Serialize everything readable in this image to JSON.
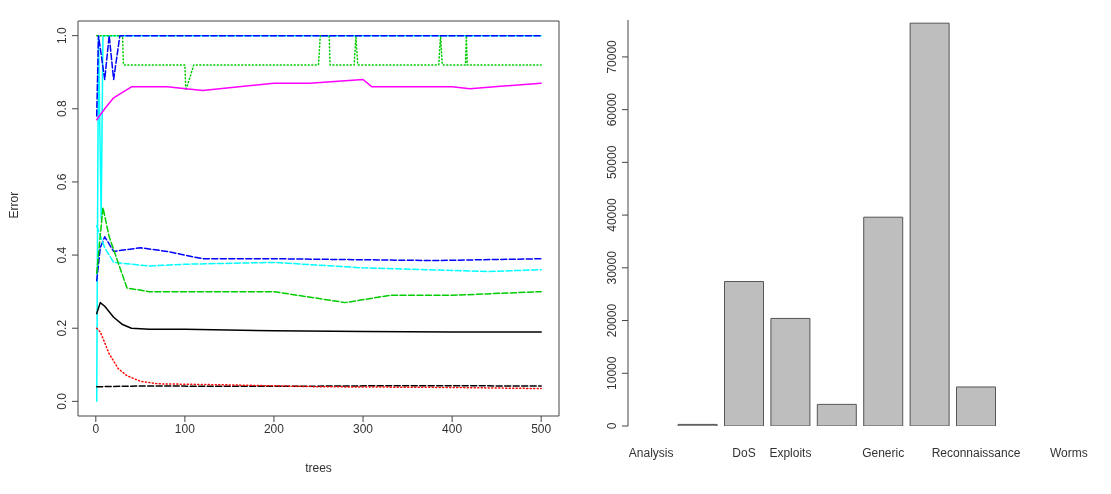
{
  "chart_data": [
    {
      "type": "line",
      "xlabel": "trees",
      "ylabel": "Error",
      "xlim": [
        -20,
        520
      ],
      "xticks": [
        0,
        100,
        200,
        300,
        400,
        500
      ],
      "ylim": [
        -0.04,
        1.04
      ],
      "yticks": [
        {
          "value": 0,
          "label": "0.0"
        },
        0.2,
        0.4,
        0.6,
        0.8,
        {
          "value": 1,
          "label": "1.0"
        }
      ],
      "series": [
        {
          "color": "#00ffff",
          "line_style": "solid",
          "x": [
            1,
            3,
            6,
            8,
            500
          ],
          "values": [
            0,
            1,
            0.5,
            1,
            1
          ]
        },
        {
          "color": "#000000",
          "line_style": "solid",
          "x": [
            1,
            5,
            10,
            20,
            30,
            40,
            60,
            100,
            200,
            300,
            400,
            500
          ],
          "values": [
            0.24,
            0.27,
            0.26,
            0.23,
            0.21,
            0.2,
            0.197,
            0.197,
            0.193,
            0.191,
            0.19,
            0.19
          ]
        },
        {
          "color": "#000000",
          "line_style": "dashed",
          "x": [
            1,
            50,
            200,
            350,
            500
          ],
          "values": [
            0.04,
            0.042,
            0.041,
            0.043,
            0.042
          ]
        },
        {
          "color": "#ff0000",
          "line_style": "dotted",
          "x": [
            1,
            5,
            15,
            25,
            35,
            50,
            70,
            150,
            250,
            400,
            500
          ],
          "values": [
            0.2,
            0.19,
            0.13,
            0.09,
            0.07,
            0.055,
            0.048,
            0.045,
            0.04,
            0.038,
            0.035
          ]
        },
        {
          "color": "#00cd00",
          "line_style": "dotted",
          "x": [
            1,
            30,
            31,
            100,
            101,
            110,
            250,
            252,
            262,
            263,
            290,
            292,
            294,
            385,
            387,
            389,
            415,
            416,
            417,
            500
          ],
          "values": [
            1,
            1,
            0.92,
            0.92,
            0.85,
            0.92,
            0.92,
            1,
            1,
            0.92,
            0.92,
            1,
            0.92,
            0.92,
            1,
            0.92,
            0.92,
            1,
            0.92,
            0.92
          ]
        },
        {
          "color": "#0000ff",
          "line_style": "dashed",
          "x": [
            1,
            5,
            10,
            20,
            50,
            80,
            120,
            200,
            380,
            500
          ],
          "values": [
            0.33,
            0.42,
            0.45,
            0.41,
            0.42,
            0.41,
            0.39,
            0.39,
            0.385,
            0.39
          ]
        },
        {
          "color": "#00ffff",
          "line_style": "dashed",
          "x": [
            1,
            10,
            20,
            60,
            100,
            200,
            300,
            440,
            500
          ],
          "values": [
            0.48,
            0.42,
            0.38,
            0.37,
            0.375,
            0.38,
            0.365,
            0.355,
            0.36
          ]
        },
        {
          "color": "#ff00ff",
          "line_style": "solid",
          "x": [
            1,
            10,
            20,
            40,
            80,
            120,
            200,
            240,
            300,
            310,
            400,
            420,
            500
          ],
          "values": [
            0.77,
            0.8,
            0.83,
            0.86,
            0.86,
            0.85,
            0.87,
            0.87,
            0.88,
            0.86,
            0.86,
            0.855,
            0.87
          ]
        },
        {
          "color": "#00cd00",
          "line_style": "dashed",
          "x": [
            1,
            8,
            15,
            25,
            35,
            60,
            100,
            200,
            280,
            330,
            400,
            500
          ],
          "values": [
            0.35,
            0.53,
            0.45,
            0.38,
            0.31,
            0.3,
            0.3,
            0.3,
            0.27,
            0.29,
            0.29,
            0.3
          ]
        },
        {
          "color": "#0000ff",
          "line_style": "dashed",
          "x": [
            1,
            3,
            10,
            15,
            20,
            27,
            500
          ],
          "values": [
            0.78,
            1,
            0.88,
            1,
            0.88,
            1,
            1
          ]
        }
      ]
    },
    {
      "type": "bar",
      "categories": [
        "Analysis",
        null,
        "DoS",
        "Exploits",
        null,
        "Generic",
        null,
        "Reconnaissance",
        null,
        "Worms"
      ],
      "values": [
        0,
        300,
        27400,
        20400,
        4100,
        39600,
        76400,
        7400,
        0,
        0
      ],
      "color": "#bebebe",
      "ylim": [
        0,
        77000
      ],
      "yticks": [
        0,
        10000,
        20000,
        30000,
        40000,
        50000,
        60000,
        70000
      ]
    }
  ]
}
